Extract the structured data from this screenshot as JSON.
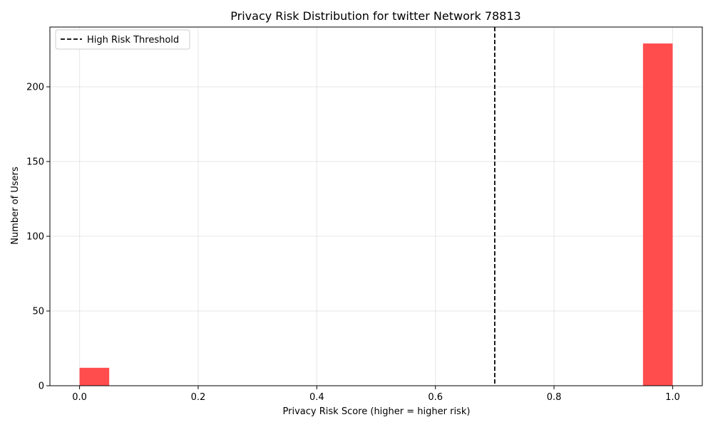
{
  "chart_data": {
    "type": "bar",
    "title": "Privacy Risk Distribution for twitter Network 78813",
    "xlabel": "Privacy Risk Score (higher = higher risk)",
    "ylabel": "Number of Users",
    "xlim": [
      -0.05,
      1.05
    ],
    "ylim": [
      0,
      240
    ],
    "x_ticks": [
      0.0,
      0.2,
      0.4,
      0.6,
      0.8,
      1.0
    ],
    "x_tick_labels": [
      "0.0",
      "0.2",
      "0.4",
      "0.6",
      "0.8",
      "1.0"
    ],
    "y_ticks": [
      0,
      50,
      100,
      150,
      200
    ],
    "y_tick_labels": [
      "0",
      "50",
      "100",
      "150",
      "200"
    ],
    "bins": [
      {
        "x0": 0.0,
        "x1": 0.05,
        "count": 12
      },
      {
        "x0": 0.95,
        "x1": 1.0,
        "count": 229
      }
    ],
    "bar_color": "#ff4d4d",
    "threshold": {
      "name": "High Risk Threshold",
      "value": 0.7,
      "color": "#000000",
      "style": "dashed"
    },
    "grid": true,
    "legend_position": "top-left"
  }
}
